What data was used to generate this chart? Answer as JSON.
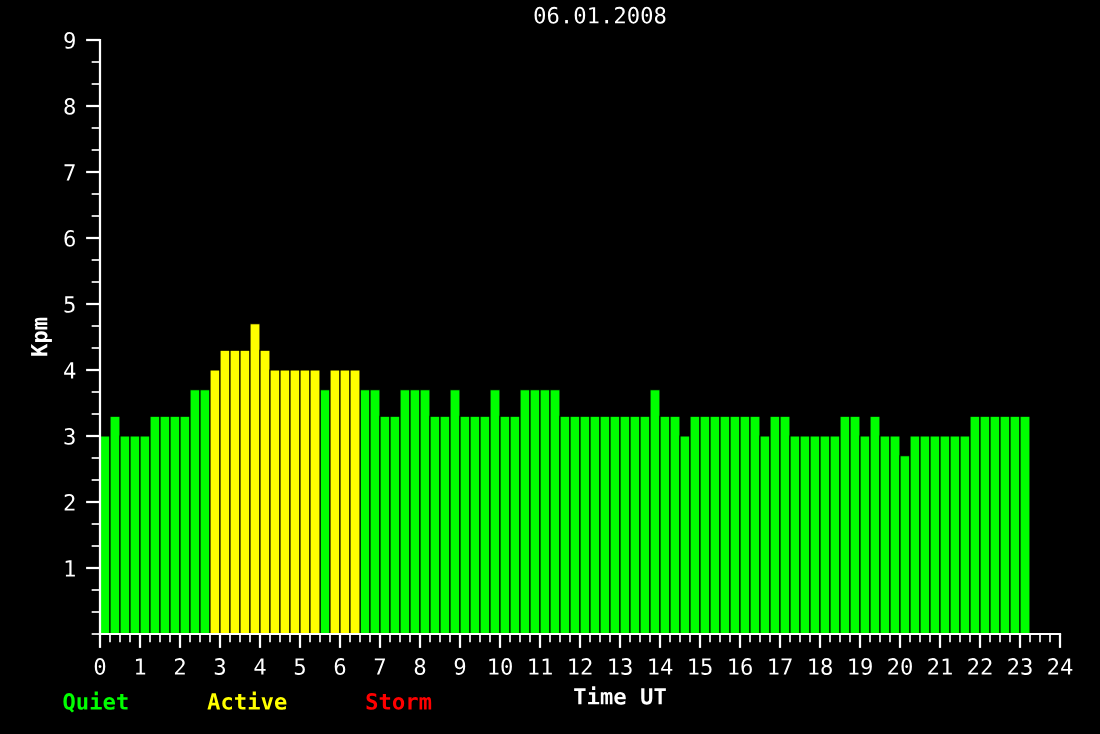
{
  "chart_data": {
    "type": "bar",
    "title": "06.01.2008",
    "xlabel": "Time UT",
    "ylabel": "Kpm",
    "x": [
      0.125,
      0.375,
      0.625,
      0.875,
      1.125,
      1.375,
      1.625,
      1.875,
      2.125,
      2.375,
      2.625,
      2.875,
      3.125,
      3.375,
      3.625,
      3.875,
      4.125,
      4.375,
      4.625,
      4.875,
      5.125,
      5.375,
      5.625,
      5.875,
      6.125,
      6.375,
      6.625,
      6.875,
      7.125,
      7.375,
      7.625,
      7.875,
      8.125,
      8.375,
      8.625,
      8.875,
      9.125,
      9.375,
      9.625,
      9.875,
      10.125,
      10.375,
      10.625,
      10.875,
      11.125,
      11.375,
      11.625,
      11.875,
      12.125,
      12.375,
      12.625,
      12.875,
      13.125,
      13.375,
      13.625,
      13.875,
      14.125,
      14.375,
      14.625,
      14.875,
      15.125,
      15.375,
      15.625,
      15.875,
      16.125,
      16.375,
      16.625,
      16.875,
      17.125,
      17.375,
      17.625,
      17.875,
      18.125,
      18.375,
      18.625,
      18.875,
      19.125,
      19.375,
      19.625,
      19.875,
      20.125,
      20.375,
      20.625,
      20.875,
      21.125,
      21.375,
      21.625,
      21.875,
      22.125,
      22.375,
      22.625,
      22.875,
      23.125
    ],
    "series": [
      {
        "name": "Quiet",
        "color": "#00ff00",
        "values": [
          3.0,
          3.3,
          3.0,
          3.0,
          3.0,
          3.3,
          3.3,
          3.3,
          3.3,
          3.7,
          3.7,
          null,
          null,
          null,
          null,
          null,
          null,
          null,
          null,
          null,
          null,
          null,
          3.7,
          null,
          null,
          null,
          3.7,
          3.7,
          3.3,
          3.3,
          3.7,
          3.7,
          3.7,
          3.3,
          3.3,
          3.7,
          3.3,
          3.3,
          3.3,
          3.7,
          3.3,
          3.3,
          3.7,
          3.7,
          3.7,
          3.7,
          3.3,
          3.3,
          3.3,
          3.3,
          3.3,
          3.3,
          3.3,
          3.3,
          3.3,
          3.7,
          3.3,
          3.3,
          3.0,
          3.3,
          3.3,
          3.3,
          3.3,
          3.3,
          3.3,
          3.3,
          3.0,
          3.3,
          3.3,
          3.0,
          3.0,
          3.0,
          3.0,
          3.0,
          3.3,
          3.3,
          3.0,
          3.3,
          3.0,
          3.0,
          2.7,
          3.0,
          3.0,
          3.0,
          3.0,
          3.0,
          3.0,
          3.3,
          3.3,
          3.3,
          3.3,
          3.3,
          3.3
        ]
      },
      {
        "name": "Active",
        "color": "#ffff00",
        "values": [
          null,
          null,
          null,
          null,
          null,
          null,
          null,
          null,
          null,
          null,
          null,
          4.0,
          4.3,
          4.3,
          4.3,
          4.7,
          4.3,
          4.0,
          4.0,
          4.0,
          4.0,
          4.0,
          null,
          4.0,
          4.0,
          4.0,
          null,
          null,
          null,
          null,
          null,
          null,
          null,
          null,
          null,
          null,
          null,
          null,
          null,
          null,
          null,
          null,
          null,
          null,
          null,
          null,
          null,
          null,
          null,
          null,
          null,
          null,
          null,
          null,
          null,
          null,
          null,
          null,
          null,
          null,
          null,
          null,
          null,
          null,
          null,
          null,
          null,
          null,
          null,
          null,
          null,
          null,
          null,
          null,
          null,
          null,
          null,
          null,
          null,
          null,
          null,
          null,
          null,
          null,
          null,
          null,
          null,
          null,
          null,
          null,
          null,
          null,
          null
        ]
      },
      {
        "name": "Storm",
        "color": "#ff0000",
        "values": [
          null,
          null,
          null,
          null,
          null,
          null,
          null,
          null,
          null,
          null,
          null,
          null,
          null,
          null,
          null,
          null,
          null,
          null,
          null,
          null,
          null,
          null,
          null,
          null,
          null,
          null,
          null,
          null,
          null,
          null,
          null,
          null,
          null,
          null,
          null,
          null,
          null,
          null,
          null,
          null,
          null,
          null,
          null,
          null,
          null,
          null,
          null,
          null,
          null,
          null,
          null,
          null,
          null,
          null,
          null,
          null,
          null,
          null,
          null,
          null,
          null,
          null,
          null,
          null,
          null,
          null,
          null,
          null,
          null,
          null,
          null,
          null,
          null,
          null,
          null,
          null,
          null,
          null,
          null,
          null,
          null,
          null,
          null,
          null,
          null,
          null,
          null,
          null,
          null,
          null,
          null,
          null,
          null
        ]
      }
    ],
    "xlim": [
      0,
      24
    ],
    "xticks": [
      0,
      1,
      2,
      3,
      4,
      5,
      6,
      7,
      8,
      9,
      10,
      11,
      12,
      13,
      14,
      15,
      16,
      17,
      18,
      19,
      20,
      21,
      22,
      23,
      24
    ],
    "ylim": [
      0,
      9
    ],
    "yticks": [
      1,
      2,
      3,
      4,
      5,
      6,
      7,
      8,
      9
    ],
    "legend": "bottom left",
    "grid": false
  }
}
